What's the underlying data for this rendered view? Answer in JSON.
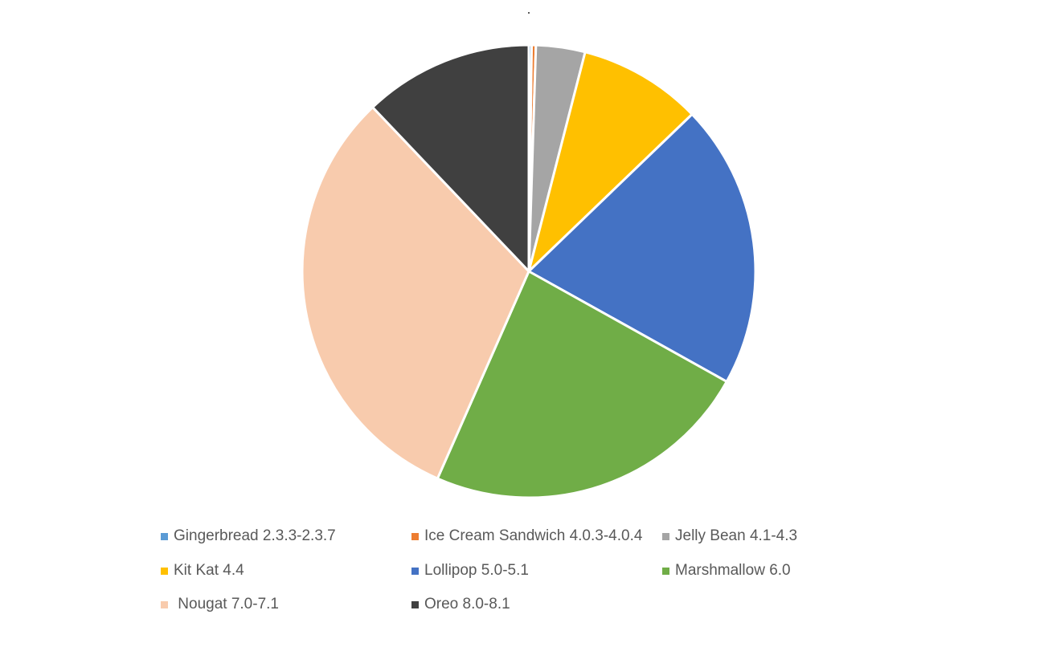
{
  "chart_data": {
    "type": "pie",
    "title": ".",
    "categories": [
      "Gingerbread 2.3.3-2.3.7",
      "Ice Cream Sandwich 4.0.3-4.0.4",
      "Jelly Bean 4.1-4.3",
      "Kit Kat 4.4",
      "Lollipop 5.0-5.1",
      "Marshmallow 6.0",
      " Nougat 7.0-7.1",
      "Oreo 8.0-8.1"
    ],
    "values": [
      0.2,
      0.3,
      3.5,
      8.8,
      20.3,
      23.5,
      31.3,
      12.1
    ],
    "colors": [
      "#5B9BD5",
      "#ED7D31",
      "#A5A5A5",
      "#FFC000",
      "#4472C4",
      "#70AD47",
      "#F8CBAD",
      "#404040"
    ],
    "legend_position": "bottom"
  }
}
